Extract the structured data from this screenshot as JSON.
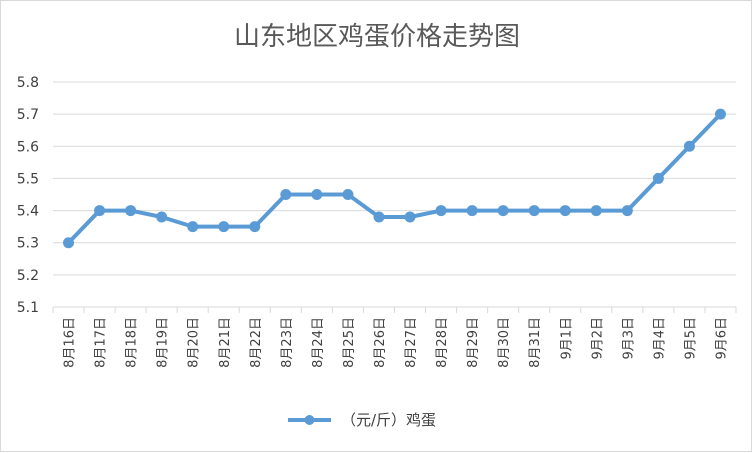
{
  "chart_data": {
    "type": "line",
    "title": "山东地区鸡蛋价格走势图",
    "xlabel": "",
    "ylabel": "",
    "categories": [
      "8月16日",
      "8月17日",
      "8月18日",
      "8月19日",
      "8月20日",
      "8月21日",
      "8月22日",
      "8月23日",
      "8月24日",
      "8月25日",
      "8月26日",
      "8月27日",
      "8月28日",
      "8月29日",
      "8月30日",
      "8月31日",
      "9月1日",
      "9月2日",
      "9月3日",
      "9月4日",
      "9月5日",
      "9月6日"
    ],
    "series": [
      {
        "name": "（元/斤）鸡蛋",
        "values": [
          5.3,
          5.4,
          5.4,
          5.38,
          5.35,
          5.35,
          5.35,
          5.45,
          5.45,
          5.45,
          5.38,
          5.38,
          5.4,
          5.4,
          5.4,
          5.4,
          5.4,
          5.4,
          5.4,
          5.5,
          5.6,
          5.7
        ]
      }
    ],
    "ylim": [
      5.1,
      5.8
    ],
    "yticks": [
      "5.1",
      "5.2",
      "5.3",
      "5.4",
      "5.5",
      "5.6",
      "5.7",
      "5.8"
    ],
    "grid": true,
    "legend_position": "bottom",
    "colors": {
      "series": "#5b9bd5",
      "grid": "#d9d9d9",
      "text": "#404040",
      "title": "#595959"
    }
  }
}
